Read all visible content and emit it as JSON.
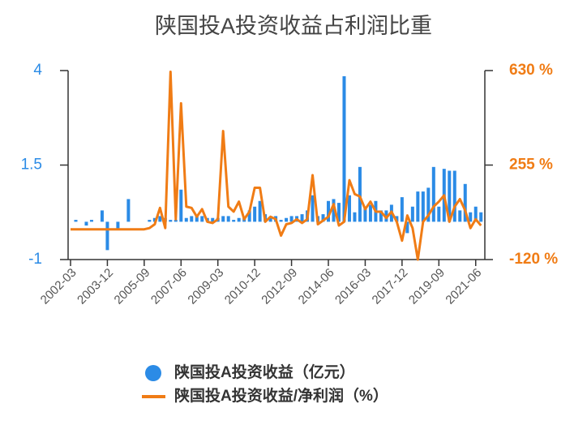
{
  "chart_data": {
    "type": "combo",
    "title": "陕国投A投资收益占利润比重",
    "categories": [
      "2002-03",
      null,
      null,
      null,
      null,
      null,
      null,
      "2003-12",
      null,
      null,
      null,
      null,
      null,
      null,
      "2005-09",
      null,
      null,
      null,
      null,
      null,
      null,
      "2007-06",
      null,
      null,
      null,
      null,
      null,
      null,
      "2009-03",
      null,
      null,
      null,
      null,
      null,
      null,
      "2010-12",
      null,
      null,
      null,
      null,
      null,
      null,
      "2012-09",
      null,
      null,
      null,
      null,
      null,
      null,
      "2014-06",
      null,
      null,
      null,
      null,
      null,
      null,
      "2016-03",
      null,
      null,
      null,
      null,
      null,
      null,
      "2017-12",
      null,
      null,
      null,
      null,
      null,
      null,
      "2019-09",
      null,
      null,
      null,
      null,
      null,
      null,
      "2021-06",
      null
    ],
    "ylim": [
      -1,
      4
    ],
    "yticks": [
      -1,
      1.5,
      4
    ],
    "y2lim": [
      -120,
      630
    ],
    "y2ticks": [
      {
        "value": -120,
        "label": "-120 %"
      },
      {
        "value": 255,
        "label": "255 %"
      },
      {
        "value": 630,
        "label": "630 %"
      }
    ],
    "grid": false,
    "series": [
      {
        "name": "陕国投A投资收益（亿元）",
        "type": "bar",
        "color": "#2b8be6",
        "values": [
          0,
          0.05,
          0,
          -0.1,
          0.05,
          0,
          0.3,
          -0.75,
          0,
          -0.2,
          0,
          0.6,
          0,
          0,
          0,
          0.05,
          0.1,
          0.15,
          0.1,
          0.05,
          0.05,
          0.85,
          0.1,
          0.15,
          0.15,
          0.15,
          0.1,
          0.1,
          0.1,
          0.15,
          0.15,
          0.05,
          0.1,
          0.1,
          0.3,
          0.4,
          0.55,
          0.2,
          0.1,
          0.15,
          0.05,
          0.1,
          0.15,
          0.15,
          0.2,
          0.3,
          0.7,
          0.15,
          0.2,
          0.55,
          0.6,
          0.5,
          3.85,
          0.7,
          0.25,
          1.45,
          0.4,
          0.45,
          0.55,
          0.3,
          0.3,
          0.45,
          0.15,
          0.65,
          -0.3,
          0.4,
          0.8,
          0.8,
          0.9,
          1.45,
          0.4,
          1.4,
          1.35,
          1.35,
          0.3,
          1.0,
          0.25,
          0.4,
          0.25
        ]
      },
      {
        "name": "陕国投A投资收益/净利润（%）",
        "type": "line",
        "axis": "y2",
        "color": "#f07c15",
        "values": [
          0,
          0,
          0,
          0,
          0,
          0,
          0,
          0,
          0,
          0,
          0,
          0,
          0,
          0,
          0,
          5,
          20,
          85,
          5,
          625,
          40,
          500,
          90,
          85,
          50,
          80,
          30,
          25,
          40,
          390,
          90,
          70,
          110,
          40,
          70,
          165,
          165,
          30,
          50,
          40,
          -25,
          20,
          25,
          40,
          25,
          40,
          215,
          20,
          35,
          50,
          100,
          15,
          30,
          195,
          140,
          130,
          80,
          110,
          70,
          70,
          45,
          70,
          30,
          -45,
          55,
          5,
          -120,
          30,
          55,
          90,
          110,
          135,
          30,
          90,
          120,
          75,
          5,
          40,
          15
        ]
      }
    ]
  }
}
